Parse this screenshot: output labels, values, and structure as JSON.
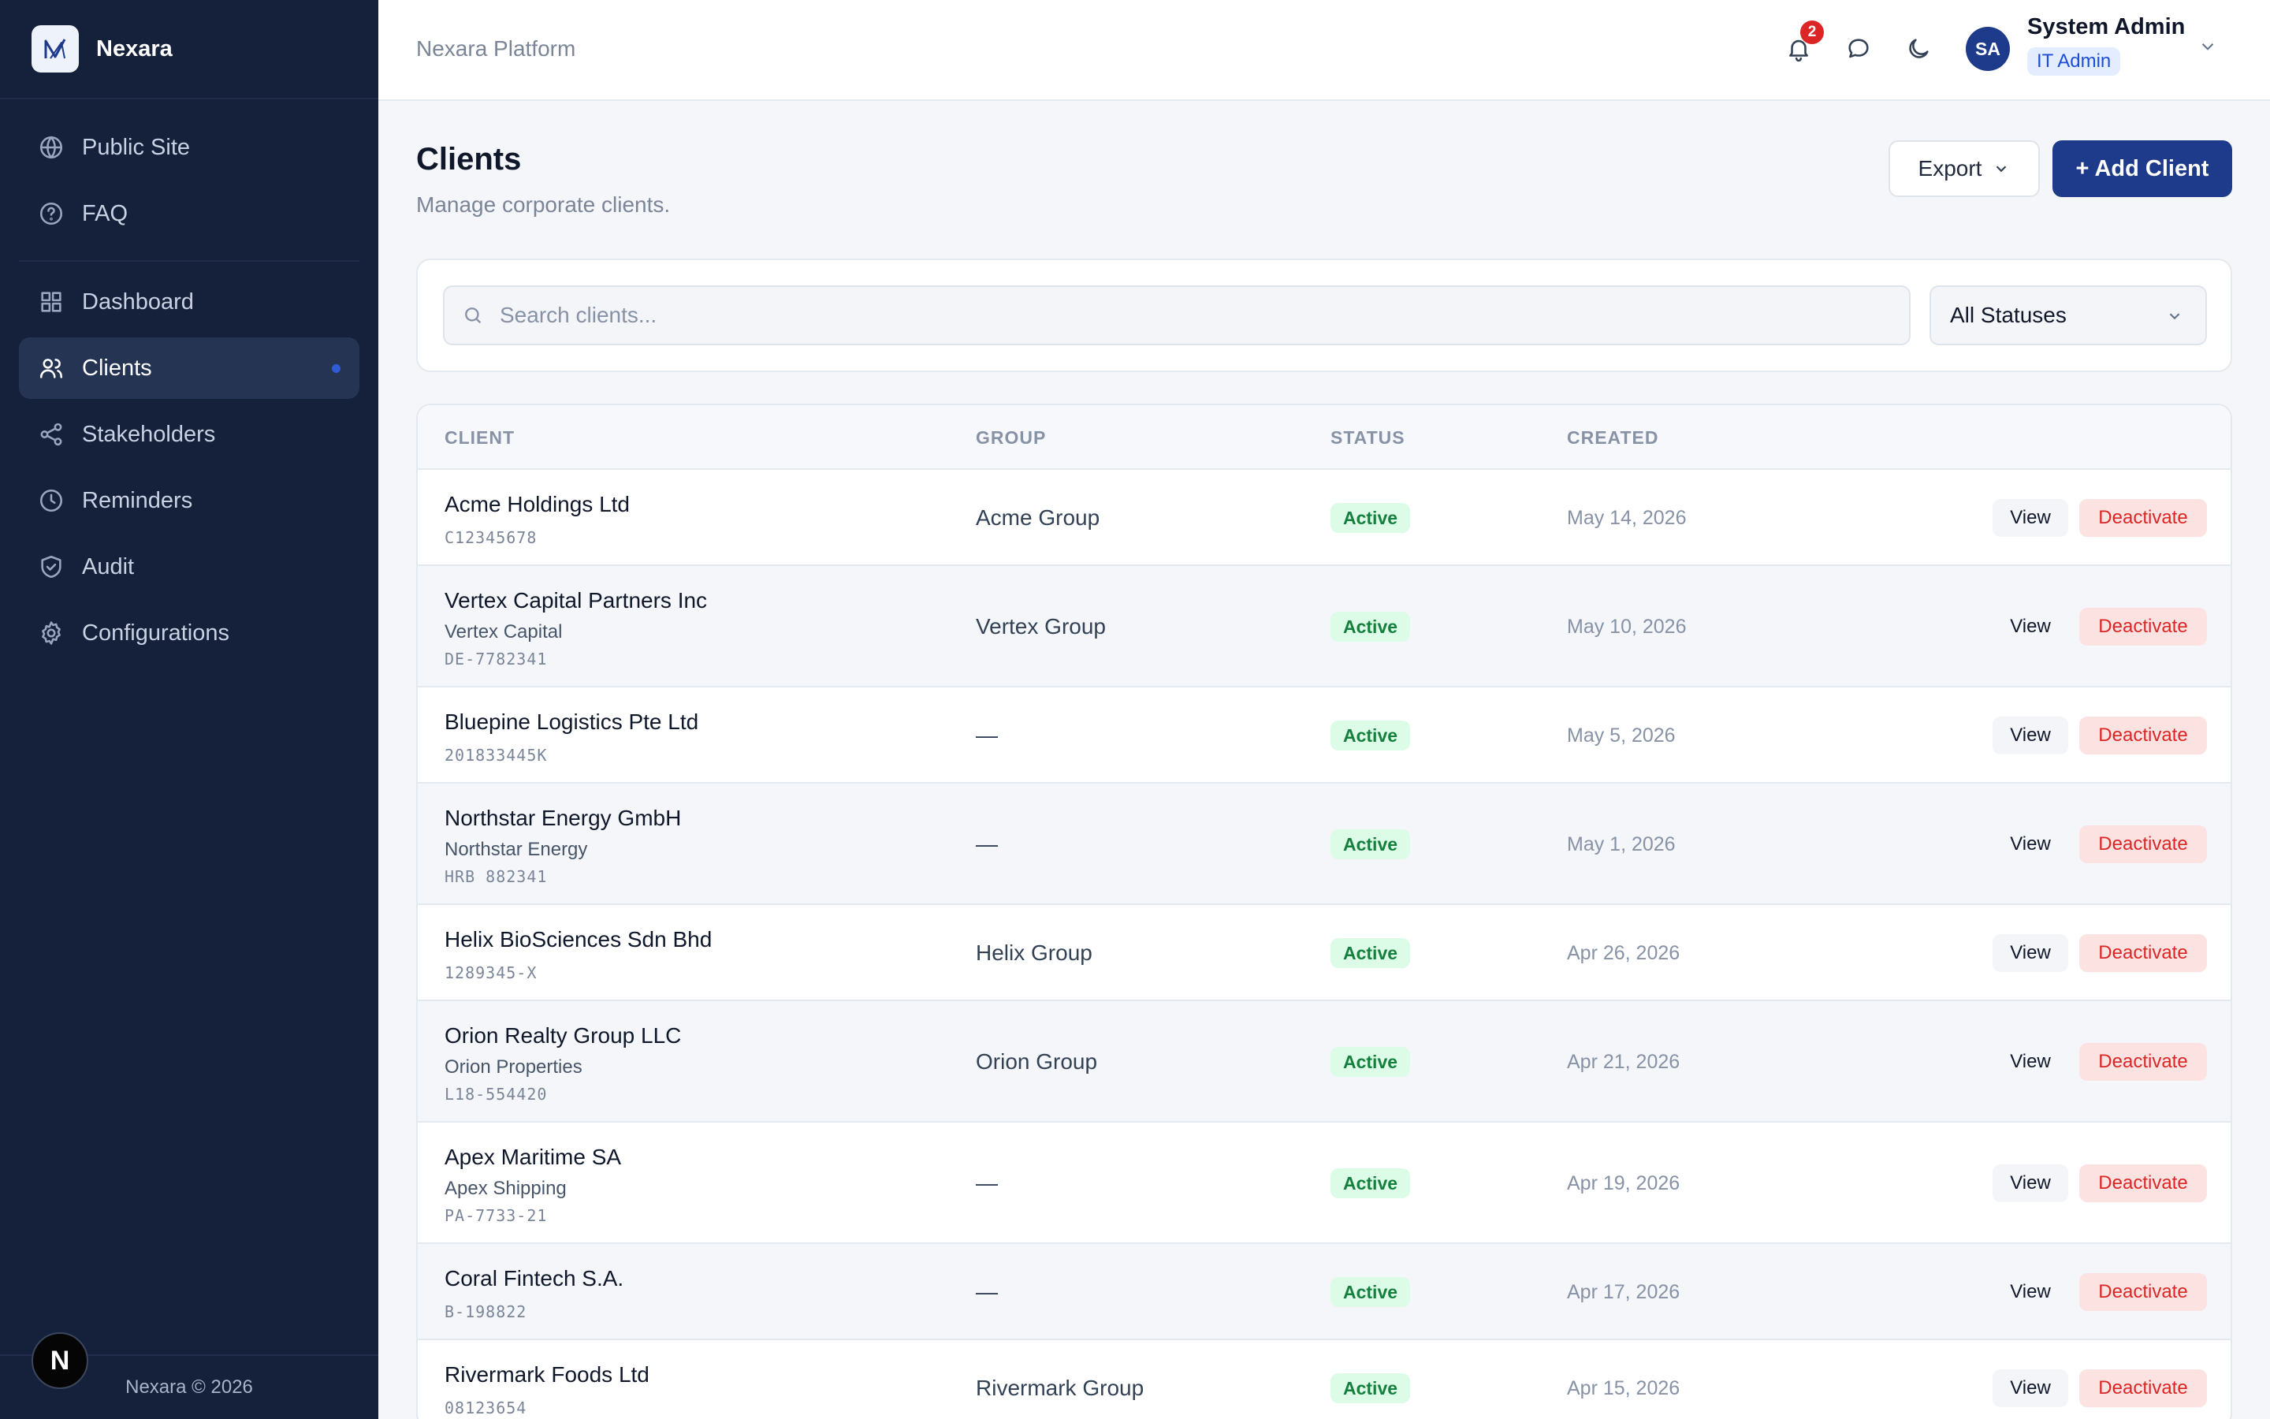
{
  "brand": {
    "name": "Nexara",
    "logo_letter": "N",
    "footer": "Nexara © 2026"
  },
  "sidebar": {
    "top_items": [
      {
        "label": "Public Site",
        "icon": "globe-icon"
      },
      {
        "label": "FAQ",
        "icon": "help-circle-icon"
      }
    ],
    "main_items": [
      {
        "label": "Dashboard",
        "icon": "grid-icon"
      },
      {
        "label": "Clients",
        "icon": "users-icon",
        "active": true
      },
      {
        "label": "Stakeholders",
        "icon": "share-icon"
      },
      {
        "label": "Reminders",
        "icon": "clock-icon"
      },
      {
        "label": "Audit",
        "icon": "shield-check-icon"
      },
      {
        "label": "Configurations",
        "icon": "gear-icon"
      }
    ]
  },
  "topbar": {
    "platform": "Nexara Platform",
    "notifications_count": "2",
    "user": {
      "initials": "SA",
      "name": "System Admin",
      "role": "IT Admin"
    }
  },
  "page": {
    "title": "Clients",
    "subtitle": "Manage corporate clients.",
    "export_label": "Export",
    "add_label": "+ Add Client"
  },
  "filters": {
    "search_placeholder": "Search clients...",
    "status_value": "All Statuses"
  },
  "table": {
    "headers": {
      "client": "CLIENT",
      "group": "GROUP",
      "status": "STATUS",
      "created": "CREATED"
    },
    "view_label": "View",
    "deactivate_label": "Deactivate",
    "rows": [
      {
        "name": "Acme Holdings Ltd",
        "alias": "",
        "code": "C12345678",
        "group": "Acme Group",
        "status": "Active",
        "created": "May 14, 2026"
      },
      {
        "name": "Vertex Capital Partners Inc",
        "alias": "Vertex Capital",
        "code": "DE-7782341",
        "group": "Vertex Group",
        "status": "Active",
        "created": "May 10, 2026"
      },
      {
        "name": "Bluepine Logistics Pte Ltd",
        "alias": "",
        "code": "201833445K",
        "group": "—",
        "status": "Active",
        "created": "May 5, 2026"
      },
      {
        "name": "Northstar Energy GmbH",
        "alias": "Northstar Energy",
        "code": "HRB 882341",
        "group": "—",
        "status": "Active",
        "created": "May 1, 2026"
      },
      {
        "name": "Helix BioSciences Sdn Bhd",
        "alias": "",
        "code": "1289345-X",
        "group": "Helix Group",
        "status": "Active",
        "created": "Apr 26, 2026"
      },
      {
        "name": "Orion Realty Group LLC",
        "alias": "Orion Properties",
        "code": "L18-554420",
        "group": "Orion Group",
        "status": "Active",
        "created": "Apr 21, 2026"
      },
      {
        "name": "Apex Maritime SA",
        "alias": "Apex Shipping",
        "code": "PA-7733-21",
        "group": "—",
        "status": "Active",
        "created": "Apr 19, 2026"
      },
      {
        "name": "Coral Fintech S.A.",
        "alias": "",
        "code": "B-198822",
        "group": "—",
        "status": "Active",
        "created": "Apr 17, 2026"
      },
      {
        "name": "Rivermark Foods Ltd",
        "alias": "",
        "code": "08123654",
        "group": "Rivermark Group",
        "status": "Active",
        "created": "Apr 15, 2026"
      }
    ]
  },
  "colors": {
    "sidebar_bg": "#15203b",
    "primary": "#1e3a8a",
    "active_green": "#15803d",
    "danger": "#dc2626"
  }
}
